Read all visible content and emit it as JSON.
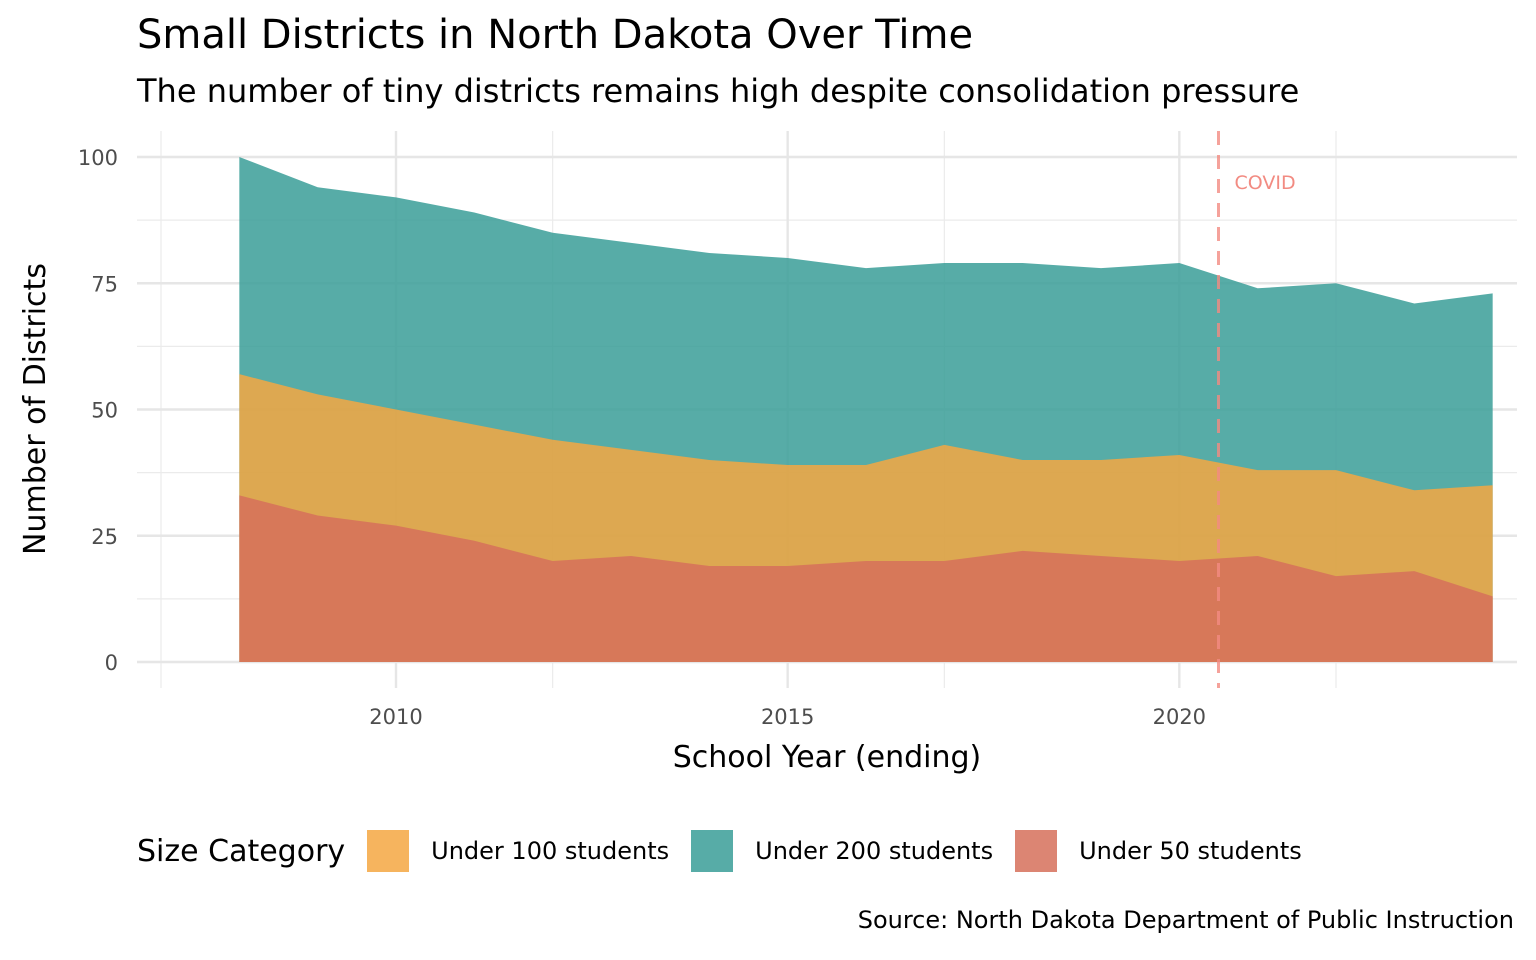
{
  "header": {
    "title": "Small Districts in North Dakota Over Time",
    "subtitle": "The number of tiny districts remains high despite consolidation pressure"
  },
  "chart_data": {
    "type": "area",
    "title": "Small Districts in North Dakota Over Time",
    "subtitle": "The number of tiny districts remains high despite consolidation pressure",
    "xlabel": "School Year (ending)",
    "ylabel": "Number of Districts",
    "x": [
      2008,
      2009,
      2010,
      2011,
      2012,
      2013,
      2014,
      2015,
      2016,
      2017,
      2018,
      2019,
      2020,
      2021,
      2022,
      2023,
      2024
    ],
    "series": [
      {
        "name": "Under 200 students",
        "color": "#3a9e98",
        "values": [
          100,
          94,
          92,
          89,
          85,
          83,
          81,
          80,
          78,
          79,
          79,
          78,
          79,
          74,
          75,
          71,
          73
        ]
      },
      {
        "name": "Under 100 students",
        "color": "#f5a742",
        "values": [
          57,
          53,
          50,
          47,
          44,
          42,
          40,
          39,
          39,
          43,
          40,
          40,
          41,
          38,
          38,
          34,
          35
        ]
      },
      {
        "name": "Under 50 students",
        "color": "#d6705a",
        "values": [
          33,
          29,
          27,
          24,
          20,
          21,
          19,
          19,
          20,
          20,
          22,
          21,
          20,
          21,
          17,
          18,
          13
        ]
      }
    ],
    "xlim": [
      2007.95,
      2024.05
    ],
    "ylim": [
      0,
      100
    ],
    "xticks": [
      2010,
      2015,
      2020
    ],
    "yticks": [
      0,
      25,
      50,
      75,
      100
    ],
    "grid": true,
    "legend": {
      "title": "Size Category",
      "placement": "bottom",
      "entries": [
        {
          "label": "Under 100 students",
          "color": "#f5a742"
        },
        {
          "label": "Under 200 students",
          "color": "#3a9e98"
        },
        {
          "label": "Under 50 students",
          "color": "#d6705a"
        }
      ]
    },
    "annotations": [
      {
        "type": "vline",
        "x": 2020.5,
        "label": "COVID",
        "color": "#f28b82"
      }
    ],
    "caption": "Source: North Dakota Department of Public Instruction"
  }
}
